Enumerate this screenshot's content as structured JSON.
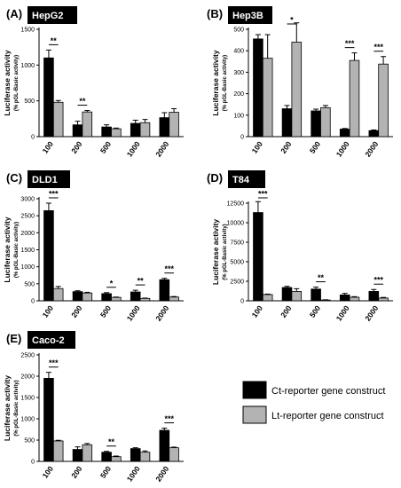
{
  "legend": {
    "placement": "bottom-right",
    "items": [
      {
        "label": "Ct-reporter gene construct",
        "color": "#000000"
      },
      {
        "label": "Lt-reporter gene construct",
        "color": "#b3b3b3"
      }
    ]
  },
  "chart_data": [
    {
      "type": "bar",
      "panel_letter": "(A)",
      "title": "HepG2",
      "ylabel": "Luciferase activity",
      "ylabel_sub": "(% pGL-Basic activity)",
      "ylim": [
        0,
        1500
      ],
      "yticks": [
        0,
        500,
        1000,
        1500
      ],
      "categories": [
        "100",
        "200",
        "500",
        "1000",
        "2000"
      ],
      "series": [
        {
          "name": "Ct-reporter gene construct",
          "color": "#000000",
          "values": [
            1100,
            165,
            135,
            185,
            265
          ],
          "errors": [
            110,
            50,
            30,
            45,
            70
          ]
        },
        {
          "name": "Lt-reporter gene construct",
          "color": "#b3b3b3",
          "values": [
            480,
            345,
            110,
            195,
            340
          ],
          "errors": [
            25,
            20,
            10,
            45,
            50
          ]
        }
      ],
      "significance": [
        "**",
        "**",
        "",
        "",
        ""
      ]
    },
    {
      "type": "bar",
      "panel_letter": "(B)",
      "title": "Hep3B",
      "ylabel": "Luciferase activity",
      "ylabel_sub": "(% pGL-Basic activity)",
      "ylim": [
        0,
        500
      ],
      "yticks": [
        0,
        100,
        200,
        300,
        400,
        500
      ],
      "categories": [
        "100",
        "200",
        "500",
        "1000",
        "2000"
      ],
      "series": [
        {
          "name": "Ct-reporter gene construct",
          "color": "#000000",
          "values": [
            455,
            130,
            120,
            35,
            28
          ],
          "errors": [
            20,
            15,
            8,
            3,
            3
          ]
        },
        {
          "name": "Lt-reporter gene construct",
          "color": "#b3b3b3",
          "values": [
            365,
            440,
            135,
            355,
            338
          ],
          "errors": [
            110,
            90,
            10,
            35,
            35
          ]
        }
      ],
      "significance": [
        "",
        "*",
        "",
        "***",
        "***"
      ]
    },
    {
      "type": "bar",
      "panel_letter": "(C)",
      "title": "DLD1",
      "ylabel": "Luciferase activity",
      "ylabel_sub": "(% pGL-Basic activity)",
      "ylim": [
        0,
        3000
      ],
      "yticks": [
        0,
        500,
        1000,
        1500,
        2000,
        2500,
        3000
      ],
      "categories": [
        "100",
        "200",
        "500",
        "1000",
        "2000"
      ],
      "series": [
        {
          "name": "Ct-reporter gene construct",
          "color": "#000000",
          "values": [
            2650,
            270,
            210,
            260,
            620
          ],
          "errors": [
            220,
            25,
            30,
            50,
            40
          ]
        },
        {
          "name": "Lt-reporter gene construct",
          "color": "#b3b3b3",
          "values": [
            360,
            230,
            100,
            70,
            110
          ],
          "errors": [
            60,
            20,
            10,
            10,
            15
          ]
        }
      ],
      "significance": [
        "***",
        "",
        "*",
        "**",
        "***"
      ]
    },
    {
      "type": "bar",
      "panel_letter": "(D)",
      "title": "T84",
      "ylabel": "Luciferase activity",
      "ylabel_sub": "(% pGL-Basic activity)",
      "ylim": [
        0,
        12500
      ],
      "yticks": [
        0,
        2500,
        5000,
        7500,
        10000,
        12500
      ],
      "categories": [
        "100",
        "200",
        "500",
        "1000",
        "2000"
      ],
      "series": [
        {
          "name": "Ct-reporter gene construct",
          "color": "#000000",
          "values": [
            11300,
            1700,
            1500,
            750,
            1200
          ],
          "errors": [
            1400,
            150,
            250,
            200,
            250
          ]
        },
        {
          "name": "Lt-reporter gene construct",
          "color": "#b3b3b3",
          "values": [
            800,
            1200,
            100,
            450,
            350
          ],
          "errors": [
            60,
            350,
            30,
            80,
            80
          ]
        }
      ],
      "significance": [
        "***",
        "",
        "**",
        "",
        "***"
      ]
    },
    {
      "type": "bar",
      "panel_letter": "(E)",
      "title": "Caco-2",
      "ylabel": "Luciferase activity",
      "ylabel_sub": "(% pGL-Basic activity)",
      "ylim": [
        0,
        2500
      ],
      "yticks": [
        0,
        500,
        1000,
        1500,
        2000,
        2500
      ],
      "categories": [
        "100",
        "200",
        "500",
        "1000",
        "2000"
      ],
      "series": [
        {
          "name": "Ct-reporter gene construct",
          "color": "#000000",
          "values": [
            1950,
            280,
            215,
            300,
            730
          ],
          "errors": [
            140,
            60,
            20,
            20,
            50
          ]
        },
        {
          "name": "Lt-reporter gene construct",
          "color": "#b3b3b3",
          "values": [
            480,
            390,
            110,
            215,
            320
          ],
          "errors": [
            15,
            30,
            15,
            30,
            15
          ]
        }
      ],
      "significance": [
        "***",
        "",
        "**",
        "",
        "***"
      ]
    }
  ]
}
